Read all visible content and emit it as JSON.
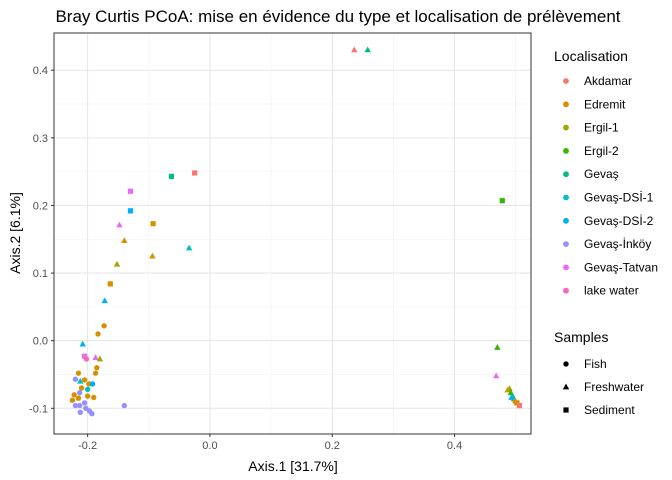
{
  "chart_data": {
    "type": "scatter",
    "title": "Bray Curtis PCoA: mise en évidence du type et localisation de prélèvement",
    "xlabel": "Axis.1   [31.7%]",
    "ylabel": "Axis.2   [6.1%]",
    "xlim": [
      -0.255,
      0.525
    ],
    "ylim": [
      -0.138,
      0.455
    ],
    "x_ticks": [
      -0.2,
      0.0,
      0.2,
      0.4
    ],
    "x_tick_labels": [
      "-0.2",
      "0.0",
      "0.2",
      "0.4"
    ],
    "y_ticks": [
      -0.1,
      0.0,
      0.1,
      0.2,
      0.3,
      0.4
    ],
    "y_tick_labels": [
      "-0.1",
      "0.0",
      "0.1",
      "0.2",
      "0.3",
      "0.4"
    ],
    "grid": true,
    "legend_position": "right",
    "color_legend": {
      "title": "Localisation",
      "entries": [
        {
          "label": "Akdamar",
          "color": "#F8766D"
        },
        {
          "label": "Edremit",
          "color": "#D89000"
        },
        {
          "label": "Ergil-1",
          "color": "#A3A500"
        },
        {
          "label": "Ergil-2",
          "color": "#39B600"
        },
        {
          "label": "Gevaş",
          "color": "#00BF7D"
        },
        {
          "label": "Gevaş-DSİ-1",
          "color": "#00BFC4"
        },
        {
          "label": "Gevaş-DSİ-2",
          "color": "#00B0F6"
        },
        {
          "label": "Gevaş-İnköy",
          "color": "#9590FF"
        },
        {
          "label": "Gevaş-Tatvan",
          "color": "#E76BF3"
        },
        {
          "label": "lake water",
          "color": "#FF62BC"
        }
      ]
    },
    "shape_legend": {
      "title": "Samples",
      "entries": [
        {
          "label": "Fish",
          "shape": "circle"
        },
        {
          "label": "Freshwater",
          "shape": "triangle"
        },
        {
          "label": "Sediment",
          "shape": "square"
        }
      ]
    },
    "points": [
      {
        "x": 0.236,
        "y": 0.43,
        "loc": "Akdamar",
        "shape": "triangle"
      },
      {
        "x": 0.258,
        "y": 0.43,
        "loc": "Gevaş",
        "shape": "triangle"
      },
      {
        "x": -0.025,
        "y": 0.248,
        "loc": "Akdamar",
        "shape": "square"
      },
      {
        "x": -0.063,
        "y": 0.243,
        "loc": "Gevaş",
        "shape": "square"
      },
      {
        "x": -0.13,
        "y": 0.221,
        "loc": "Gevaş-Tatvan",
        "shape": "square"
      },
      {
        "x": -0.13,
        "y": 0.192,
        "loc": "Gevaş-DSİ-2",
        "shape": "square"
      },
      {
        "x": -0.148,
        "y": 0.171,
        "loc": "Gevaş-Tatvan",
        "shape": "triangle"
      },
      {
        "x": -0.093,
        "y": 0.173,
        "loc": "Edremit",
        "shape": "square"
      },
      {
        "x": -0.14,
        "y": 0.148,
        "loc": "Edremit",
        "shape": "triangle"
      },
      {
        "x": -0.034,
        "y": 0.137,
        "loc": "Gevaş-DSİ-1",
        "shape": "triangle"
      },
      {
        "x": -0.094,
        "y": 0.125,
        "loc": "Edremit",
        "shape": "triangle"
      },
      {
        "x": -0.152,
        "y": 0.113,
        "loc": "Ergil-1",
        "shape": "triangle"
      },
      {
        "x": -0.163,
        "y": 0.084,
        "loc": "Edremit",
        "shape": "square"
      },
      {
        "x": -0.172,
        "y": 0.059,
        "loc": "Gevaş-DSİ-2",
        "shape": "triangle"
      },
      {
        "x": -0.173,
        "y": 0.022,
        "loc": "Edremit",
        "shape": "circle"
      },
      {
        "x": -0.183,
        "y": 0.01,
        "loc": "Edremit",
        "shape": "circle"
      },
      {
        "x": -0.208,
        "y": -0.005,
        "loc": "Gevaş-DSİ-2",
        "shape": "triangle"
      },
      {
        "x": -0.205,
        "y": -0.023,
        "loc": "Gevaş-Tatvan",
        "shape": "square"
      },
      {
        "x": -0.202,
        "y": -0.027,
        "loc": "lake water",
        "shape": "circle"
      },
      {
        "x": -0.187,
        "y": -0.025,
        "loc": "Gevaş-Tatvan",
        "shape": "triangle"
      },
      {
        "x": -0.18,
        "y": -0.027,
        "loc": "Ergil-1",
        "shape": "triangle"
      },
      {
        "x": -0.185,
        "y": -0.04,
        "loc": "Edremit",
        "shape": "circle"
      },
      {
        "x": -0.187,
        "y": -0.048,
        "loc": "Edremit",
        "shape": "circle"
      },
      {
        "x": -0.215,
        "y": -0.048,
        "loc": "Edremit",
        "shape": "circle"
      },
      {
        "x": -0.22,
        "y": -0.057,
        "loc": "Gevaş-İnköy",
        "shape": "circle"
      },
      {
        "x": -0.212,
        "y": -0.06,
        "loc": "Gevaş-DSİ-1",
        "shape": "triangle"
      },
      {
        "x": -0.205,
        "y": -0.058,
        "loc": "Edremit",
        "shape": "circle"
      },
      {
        "x": -0.198,
        "y": -0.064,
        "loc": "Edremit",
        "shape": "circle"
      },
      {
        "x": -0.192,
        "y": -0.064,
        "loc": "Gevaş-DSİ-2",
        "shape": "circle"
      },
      {
        "x": -0.21,
        "y": -0.07,
        "loc": "Edremit",
        "shape": "circle"
      },
      {
        "x": -0.2,
        "y": -0.072,
        "loc": "Gevaş-DSİ-1",
        "shape": "circle"
      },
      {
        "x": -0.213,
        "y": -0.077,
        "loc": "Gevaş-İnköy",
        "shape": "circle"
      },
      {
        "x": -0.222,
        "y": -0.08,
        "loc": "Edremit",
        "shape": "circle"
      },
      {
        "x": -0.215,
        "y": -0.085,
        "loc": "Edremit",
        "shape": "circle"
      },
      {
        "x": -0.225,
        "y": -0.088,
        "loc": "Edremit",
        "shape": "circle"
      },
      {
        "x": -0.2,
        "y": -0.082,
        "loc": "Edremit",
        "shape": "circle"
      },
      {
        "x": -0.19,
        "y": -0.084,
        "loc": "Edremit",
        "shape": "circle"
      },
      {
        "x": -0.205,
        "y": -0.092,
        "loc": "Gevaş-İnköy",
        "shape": "circle"
      },
      {
        "x": -0.22,
        "y": -0.096,
        "loc": "Gevaş-İnköy",
        "shape": "circle"
      },
      {
        "x": -0.213,
        "y": -0.096,
        "loc": "Gevaş-İnköy",
        "shape": "circle"
      },
      {
        "x": -0.203,
        "y": -0.1,
        "loc": "Gevaş-İnköy",
        "shape": "circle"
      },
      {
        "x": -0.197,
        "y": -0.104,
        "loc": "Gevaş-İnköy",
        "shape": "circle"
      },
      {
        "x": -0.193,
        "y": -0.108,
        "loc": "Gevaş-İnköy",
        "shape": "circle"
      },
      {
        "x": -0.212,
        "y": -0.106,
        "loc": "Gevaş-İnköy",
        "shape": "circle"
      },
      {
        "x": -0.14,
        "y": -0.096,
        "loc": "Gevaş-İnköy",
        "shape": "circle"
      },
      {
        "x": 0.478,
        "y": 0.207,
        "loc": "Ergil-2",
        "shape": "square"
      },
      {
        "x": 0.47,
        "y": -0.01,
        "loc": "Ergil-2",
        "shape": "triangle"
      },
      {
        "x": 0.468,
        "y": -0.052,
        "loc": "Gevaş-Tatvan",
        "shape": "triangle"
      },
      {
        "x": 0.487,
        "y": -0.073,
        "loc": "Edremit",
        "shape": "triangle"
      },
      {
        "x": 0.49,
        "y": -0.071,
        "loc": "Ergil-1",
        "shape": "triangle"
      },
      {
        "x": 0.492,
        "y": -0.077,
        "loc": "Ergil-2",
        "shape": "triangle"
      },
      {
        "x": 0.495,
        "y": -0.082,
        "loc": "Gevaş",
        "shape": "triangle"
      },
      {
        "x": 0.497,
        "y": -0.086,
        "loc": "Gevaş-DSİ-1",
        "shape": "triangle"
      },
      {
        "x": 0.493,
        "y": -0.084,
        "loc": "Gevaş-DSİ-2",
        "shape": "triangle"
      },
      {
        "x": 0.499,
        "y": -0.09,
        "loc": "Edremit",
        "shape": "circle"
      },
      {
        "x": 0.502,
        "y": -0.092,
        "loc": "Edremit",
        "shape": "square"
      },
      {
        "x": 0.506,
        "y": -0.096,
        "loc": "Akdamar",
        "shape": "square"
      }
    ]
  }
}
